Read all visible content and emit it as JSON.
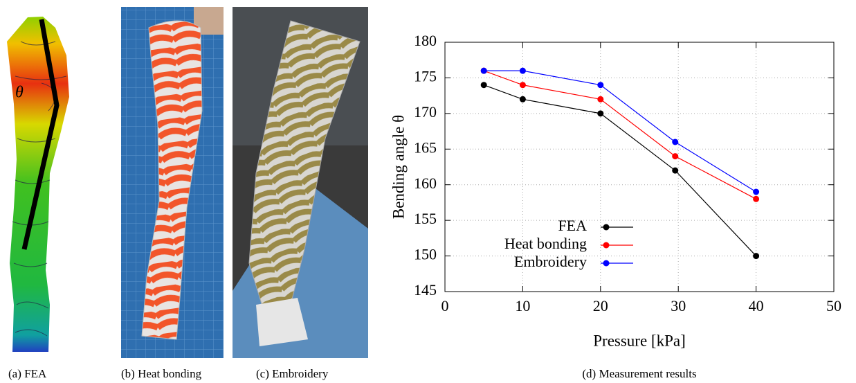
{
  "panels": [
    {
      "caption": "(a) FEA",
      "label": "θ"
    },
    {
      "caption": "(b) Heat bonding"
    },
    {
      "caption": "(c) Embroidery"
    },
    {
      "caption": "(d) Measurement results"
    }
  ],
  "chart_data": {
    "type": "line",
    "x_label": "Pressure [kPa]",
    "y_label": "Bending angle θ",
    "x": [
      5,
      10,
      20,
      29.6,
      40
    ],
    "series": [
      {
        "name": "FEA",
        "color": "#000000",
        "values": [
          174,
          172,
          170,
          162,
          150
        ]
      },
      {
        "name": "Heat bonding",
        "color": "#ff0000",
        "values": [
          176,
          174,
          172,
          164,
          158
        ]
      },
      {
        "name": "Embroidery",
        "color": "#0000ff",
        "values": [
          176,
          176,
          174,
          166,
          159
        ]
      }
    ],
    "xlim": [
      0,
      50
    ],
    "xticks": [
      0,
      10,
      20,
      30,
      40,
      50
    ],
    "ylim": [
      145,
      180
    ],
    "yticks": [
      145,
      150,
      155,
      160,
      165,
      170,
      175,
      180
    ],
    "grid": true,
    "legend": "lower left"
  }
}
